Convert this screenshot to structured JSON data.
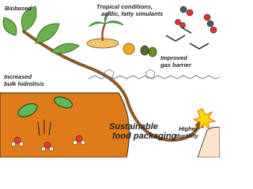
{
  "labels": {
    "biobased": [
      "Biobased"
    ],
    "tropical": [
      "Tropical conditions,",
      "acidic, fatty simulants"
    ],
    "gas_barrier": [
      "Improved",
      "gas barrier"
    ],
    "hydrolysis": [
      "Increased",
      "bulk hidrolisis"
    ],
    "packaging": [
      "Sustainable",
      "food packaging"
    ],
    "ductility": [
      "Higher",
      "ductility"
    ]
  }
}
